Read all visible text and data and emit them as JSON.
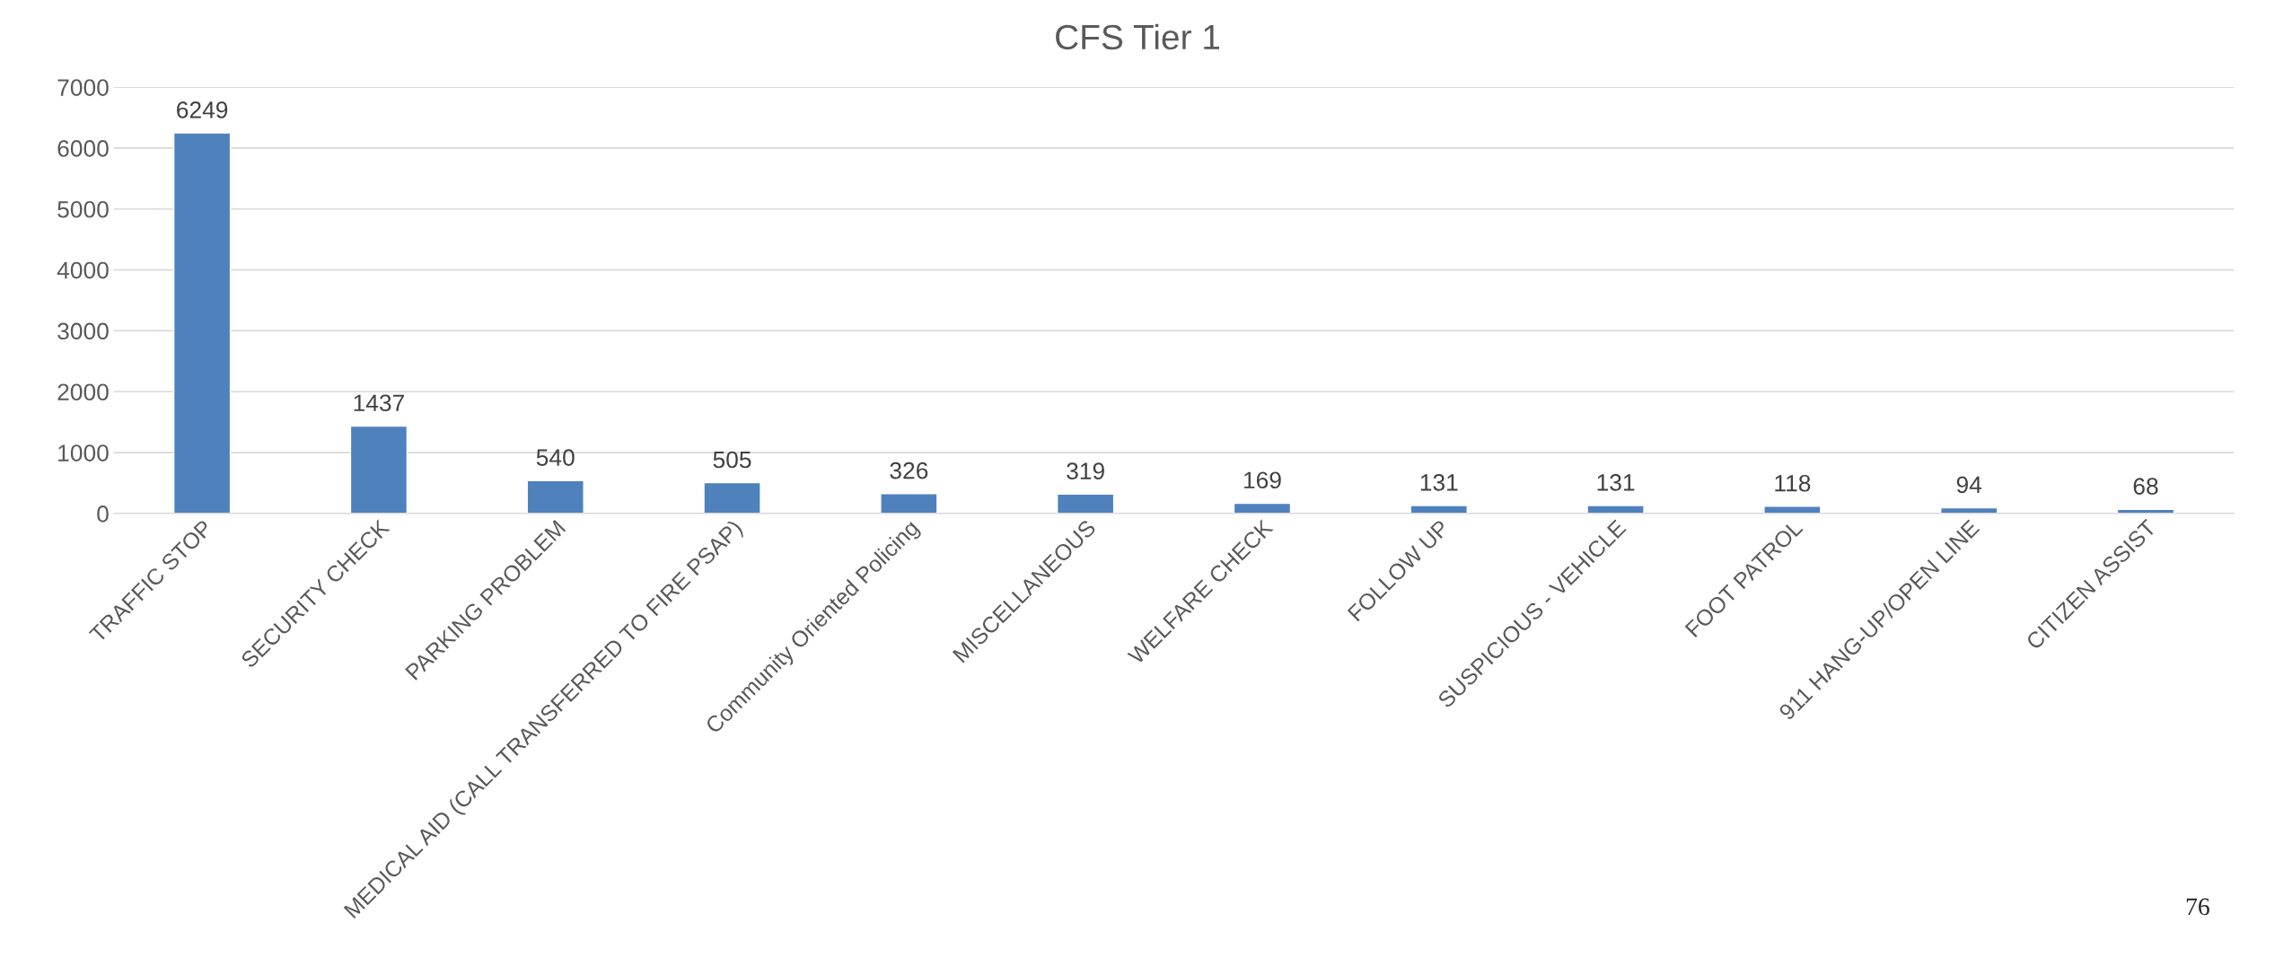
{
  "chart_data": {
    "type": "bar",
    "title": "CFS Tier 1",
    "categories": [
      "TRAFFIC STOP",
      "SECURITY CHECK",
      "PARKING PROBLEM",
      "MEDICAL AID (CALL TRANSFERRED TO FIRE PSAP)",
      "Community Oriented Policing",
      "MISCELLANEOUS",
      "WELFARE CHECK",
      "FOLLOW UP",
      "SUSPICIOUS - VEHICLE",
      "FOOT PATROL",
      "911 HANG-UP/OPEN LINE",
      "CITIZEN ASSIST"
    ],
    "values": [
      6249,
      1437,
      540,
      505,
      326,
      319,
      169,
      131,
      131,
      118,
      94,
      68
    ],
    "color": "#4f81bd",
    "ylim": [
      0,
      7000
    ],
    "yticks": [
      0,
      1000,
      2000,
      3000,
      4000,
      5000,
      6000,
      7000
    ],
    "grid": "y",
    "data_labels": true,
    "legend": false,
    "annotations": [
      "76"
    ]
  }
}
